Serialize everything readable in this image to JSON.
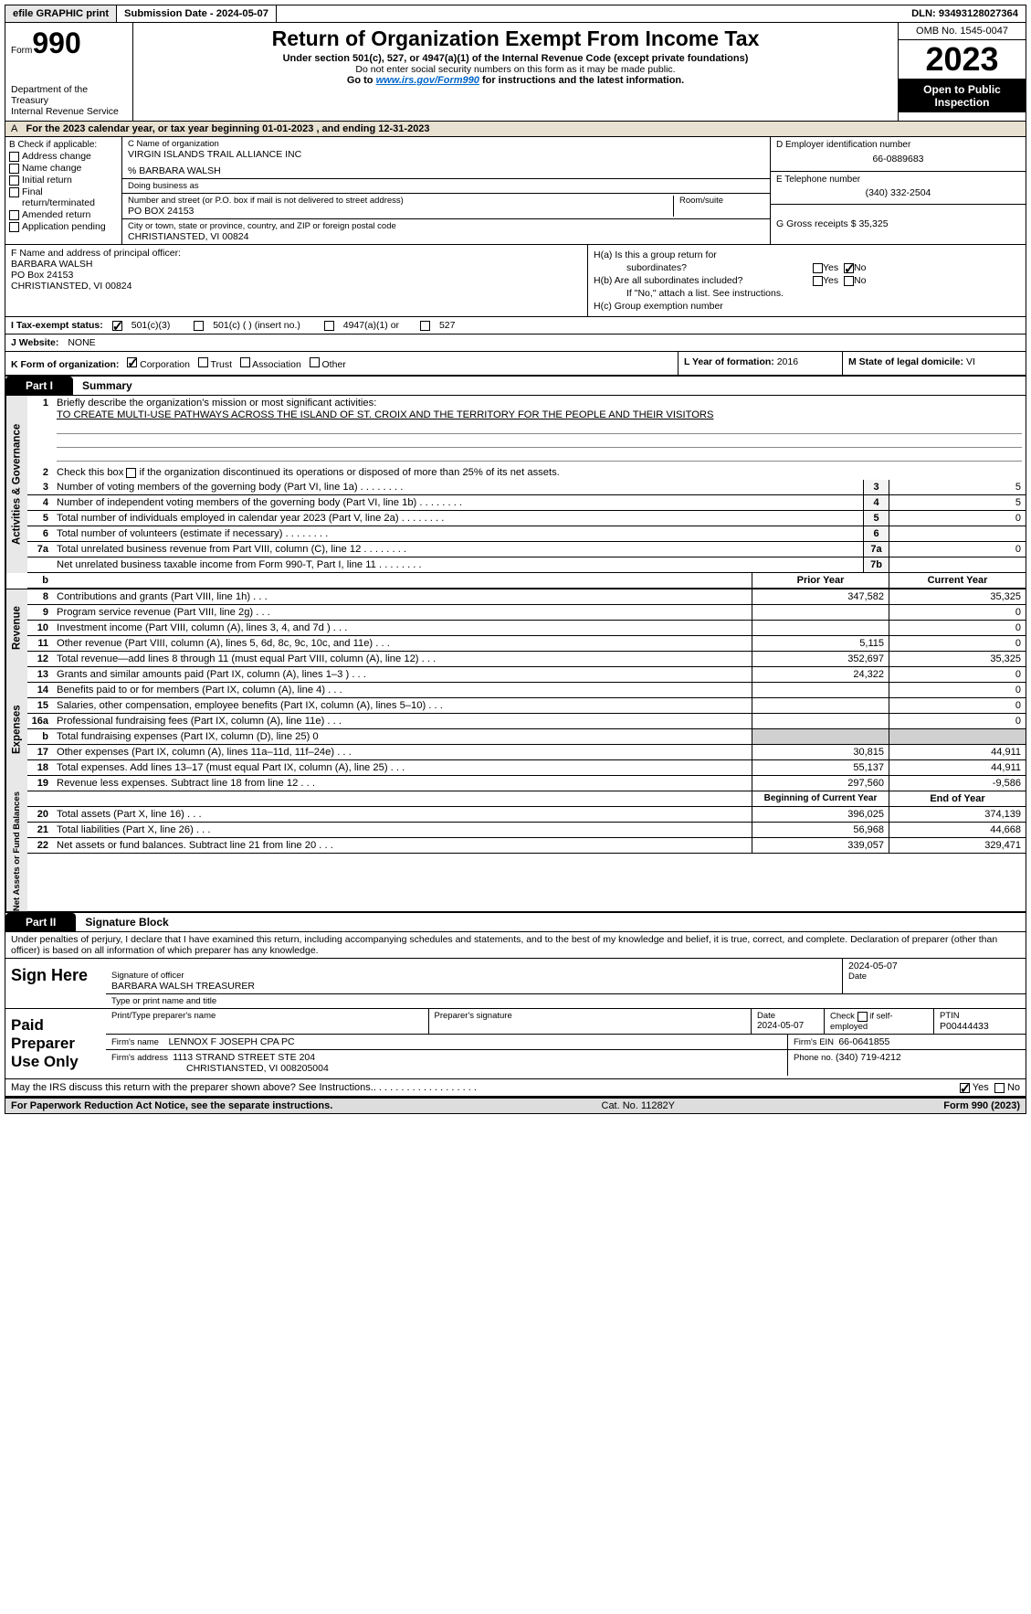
{
  "topbar": {
    "efile": "efile GRAPHIC print",
    "submission": "Submission Date - 2024-05-07",
    "dln": "DLN: 93493128027364"
  },
  "header": {
    "form_word": "Form",
    "form_number": "990",
    "dept": "Department of the Treasury",
    "irs": "Internal Revenue Service",
    "title": "Return of Organization Exempt From Income Tax",
    "under": "Under section 501(c), 527, or 4947(a)(1) of the Internal Revenue Code (except private foundations)",
    "ssn_note": "Do not enter social security numbers on this form as it may be made public.",
    "go_to_pre": "Go to ",
    "go_to_link": "www.irs.gov/Form990",
    "go_to_post": " for instructions and the latest information.",
    "omb": "OMB No. 1545-0047",
    "year": "2023",
    "inspect1": "Open to Public",
    "inspect2": "Inspection"
  },
  "period": "For the 2023 calendar year, or tax year beginning 01-01-2023   , and ending 12-31-2023",
  "boxA": "A",
  "boxB": {
    "label": "B Check if applicable:",
    "opts": [
      "Address change",
      "Name change",
      "Initial return",
      "Final return/terminated",
      "Amended return",
      "Application pending"
    ]
  },
  "boxC": {
    "name_label": "C Name of organization",
    "name": "VIRGIN ISLANDS TRAIL ALLIANCE INC",
    "care_of": "% BARBARA WALSH",
    "dba": "Doing business as",
    "street_label": "Number and street (or P.O. box if mail is not delivered to street address)",
    "room_label": "Room/suite",
    "street": "PO BOX 24153",
    "city_label": "City or town, state or province, country, and ZIP or foreign postal code",
    "city": "CHRISTIANSTED, VI  00824"
  },
  "boxD": {
    "label": "D Employer identification number",
    "val": "66-0889683"
  },
  "boxE": {
    "label": "E Telephone number",
    "val": "(340) 332-2504"
  },
  "boxG": {
    "label": "G Gross receipts $",
    "val": "35,325"
  },
  "boxF": {
    "label": "F  Name and address of principal officer:",
    "l1": "BARBARA WALSH",
    "l2": "PO Box 24153",
    "l3": "CHRISTIANSTED, VI  00824"
  },
  "boxH": {
    "a": "H(a)  Is this a group return for",
    "a2": "subordinates?",
    "b": "H(b)  Are all subordinates included?",
    "b2": "If \"No,\" attach a list. See instructions.",
    "c": "H(c)  Group exemption number",
    "yes": "Yes",
    "no": "No"
  },
  "rowI": {
    "label": "I    Tax-exempt status:",
    "opt1": "501(c)(3)",
    "opt2": "501(c) (  ) (insert no.)",
    "opt3": "4947(a)(1) or",
    "opt4": "527"
  },
  "rowJ": {
    "label": "J   Website:",
    "val": "NONE"
  },
  "rowK": {
    "label": "K Form of organization:",
    "opts": [
      "Corporation",
      "Trust",
      "Association",
      "Other"
    ]
  },
  "rowL": {
    "label": "L Year of formation:",
    "val": "2016"
  },
  "rowM": {
    "label": "M State of legal domicile:",
    "val": "VI"
  },
  "part1": {
    "tab": "Part I",
    "title": "Summary"
  },
  "mission": {
    "label": "Briefly describe the organization's mission or most significant activities:",
    "text": "TO CREATE MULTI-USE PATHWAYS ACROSS THE ISLAND OF ST. CROIX AND THE TERRITORY FOR THE PEOPLE AND THEIR VISITORS"
  },
  "line2": "Check this box        if the organization discontinued its operations or disposed of more than 25% of its net assets.",
  "side": {
    "gov": "Activities & Governance",
    "rev": "Revenue",
    "exp": "Expenses",
    "net": "Net Assets or Fund Balances"
  },
  "gov_rows": [
    {
      "n": "3",
      "d": "Number of voting members of the governing body (Part VI, line 1a)",
      "box": "3",
      "v": "5"
    },
    {
      "n": "4",
      "d": "Number of independent voting members of the governing body (Part VI, line 1b)",
      "box": "4",
      "v": "5"
    },
    {
      "n": "5",
      "d": "Total number of individuals employed in calendar year 2023 (Part V, line 2a)",
      "box": "5",
      "v": "0"
    },
    {
      "n": "6",
      "d": "Total number of volunteers (estimate if necessary)",
      "box": "6",
      "v": ""
    },
    {
      "n": "7a",
      "d": "Total unrelated business revenue from Part VIII, column (C), line 12",
      "box": "7a",
      "v": "0"
    },
    {
      "n": "",
      "d": "Net unrelated business taxable income from Form 990-T, Part I, line 11",
      "box": "7b",
      "v": ""
    }
  ],
  "col_headers": {
    "b": "b",
    "py": "Prior Year",
    "cy": "Current Year"
  },
  "rev_rows": [
    {
      "n": "8",
      "d": "Contributions and grants (Part VIII, line 1h)",
      "py": "347,582",
      "cy": "35,325"
    },
    {
      "n": "9",
      "d": "Program service revenue (Part VIII, line 2g)",
      "py": "",
      "cy": "0"
    },
    {
      "n": "10",
      "d": "Investment income (Part VIII, column (A), lines 3, 4, and 7d )",
      "py": "",
      "cy": "0"
    },
    {
      "n": "11",
      "d": "Other revenue (Part VIII, column (A), lines 5, 6d, 8c, 9c, 10c, and 11e)",
      "py": "5,115",
      "cy": "0"
    },
    {
      "n": "12",
      "d": "Total revenue—add lines 8 through 11 (must equal Part VIII, column (A), line 12)",
      "py": "352,697",
      "cy": "35,325"
    }
  ],
  "exp_rows": [
    {
      "n": "13",
      "d": "Grants and similar amounts paid (Part IX, column (A), lines 1–3 )",
      "py": "24,322",
      "cy": "0"
    },
    {
      "n": "14",
      "d": "Benefits paid to or for members (Part IX, column (A), line 4)",
      "py": "",
      "cy": "0"
    },
    {
      "n": "15",
      "d": "Salaries, other compensation, employee benefits (Part IX, column (A), lines 5–10)",
      "py": "",
      "cy": "0"
    },
    {
      "n": "16a",
      "d": "Professional fundraising fees (Part IX, column (A), line 11e)",
      "py": "",
      "cy": "0"
    },
    {
      "n": "b",
      "d": "Total fundraising expenses (Part IX, column (D), line 25) 0",
      "py": "GRAY",
      "cy": "GRAY"
    },
    {
      "n": "17",
      "d": "Other expenses (Part IX, column (A), lines 11a–11d, 11f–24e)",
      "py": "30,815",
      "cy": "44,911"
    },
    {
      "n": "18",
      "d": "Total expenses. Add lines 13–17 (must equal Part IX, column (A), line 25)",
      "py": "55,137",
      "cy": "44,911"
    },
    {
      "n": "19",
      "d": "Revenue less expenses. Subtract line 18 from line 12",
      "py": "297,560",
      "cy": "-9,586"
    }
  ],
  "net_headers": {
    "beg": "Beginning of Current Year",
    "end": "End of Year"
  },
  "net_rows": [
    {
      "n": "20",
      "d": "Total assets (Part X, line 16)",
      "py": "396,025",
      "cy": "374,139"
    },
    {
      "n": "21",
      "d": "Total liabilities (Part X, line 26)",
      "py": "56,968",
      "cy": "44,668"
    },
    {
      "n": "22",
      "d": "Net assets or fund balances. Subtract line 21 from line 20",
      "py": "339,057",
      "cy": "329,471"
    }
  ],
  "part2": {
    "tab": "Part II",
    "title": "Signature Block"
  },
  "perjury": "Under penalties of perjury, I declare that I have examined this return, including accompanying schedules and statements, and to the best of my knowledge and belief, it is true, correct, and complete. Declaration of preparer (other than officer) is based on all information of which preparer has any knowledge.",
  "sign": {
    "here": "Sign Here",
    "sig_label": "Signature of officer",
    "name": "BARBARA WALSH  TREASURER",
    "type_label": "Type or print name and title",
    "date": "2024-05-07",
    "date_label": "Date"
  },
  "paid": {
    "label": "Paid Preparer Use Only",
    "print_label": "Print/Type preparer's name",
    "sig_label": "Preparer's signature",
    "date_label": "Date",
    "date": "2024-05-07",
    "check_label": "Check          if self-employed",
    "ptin_label": "PTIN",
    "ptin": "P00444433",
    "firm_name_label": "Firm's name",
    "firm_name": "LENNOX F JOSEPH CPA PC",
    "firm_ein_label": "Firm's EIN",
    "firm_ein": "66-0641855",
    "firm_addr_label": "Firm's address",
    "firm_addr1": "1113 STRAND STREET STE 204",
    "firm_addr2": "CHRISTIANSTED, VI  008205004",
    "phone_label": "Phone no.",
    "phone": "(340) 719-4212"
  },
  "irs_discuss": "May the IRS discuss this return with the preparer shown above? See Instructions.",
  "footer": {
    "paperwork": "For Paperwork Reduction Act Notice, see the separate instructions.",
    "cat": "Cat. No. 11282Y",
    "form": "Form 990 (2023)"
  }
}
